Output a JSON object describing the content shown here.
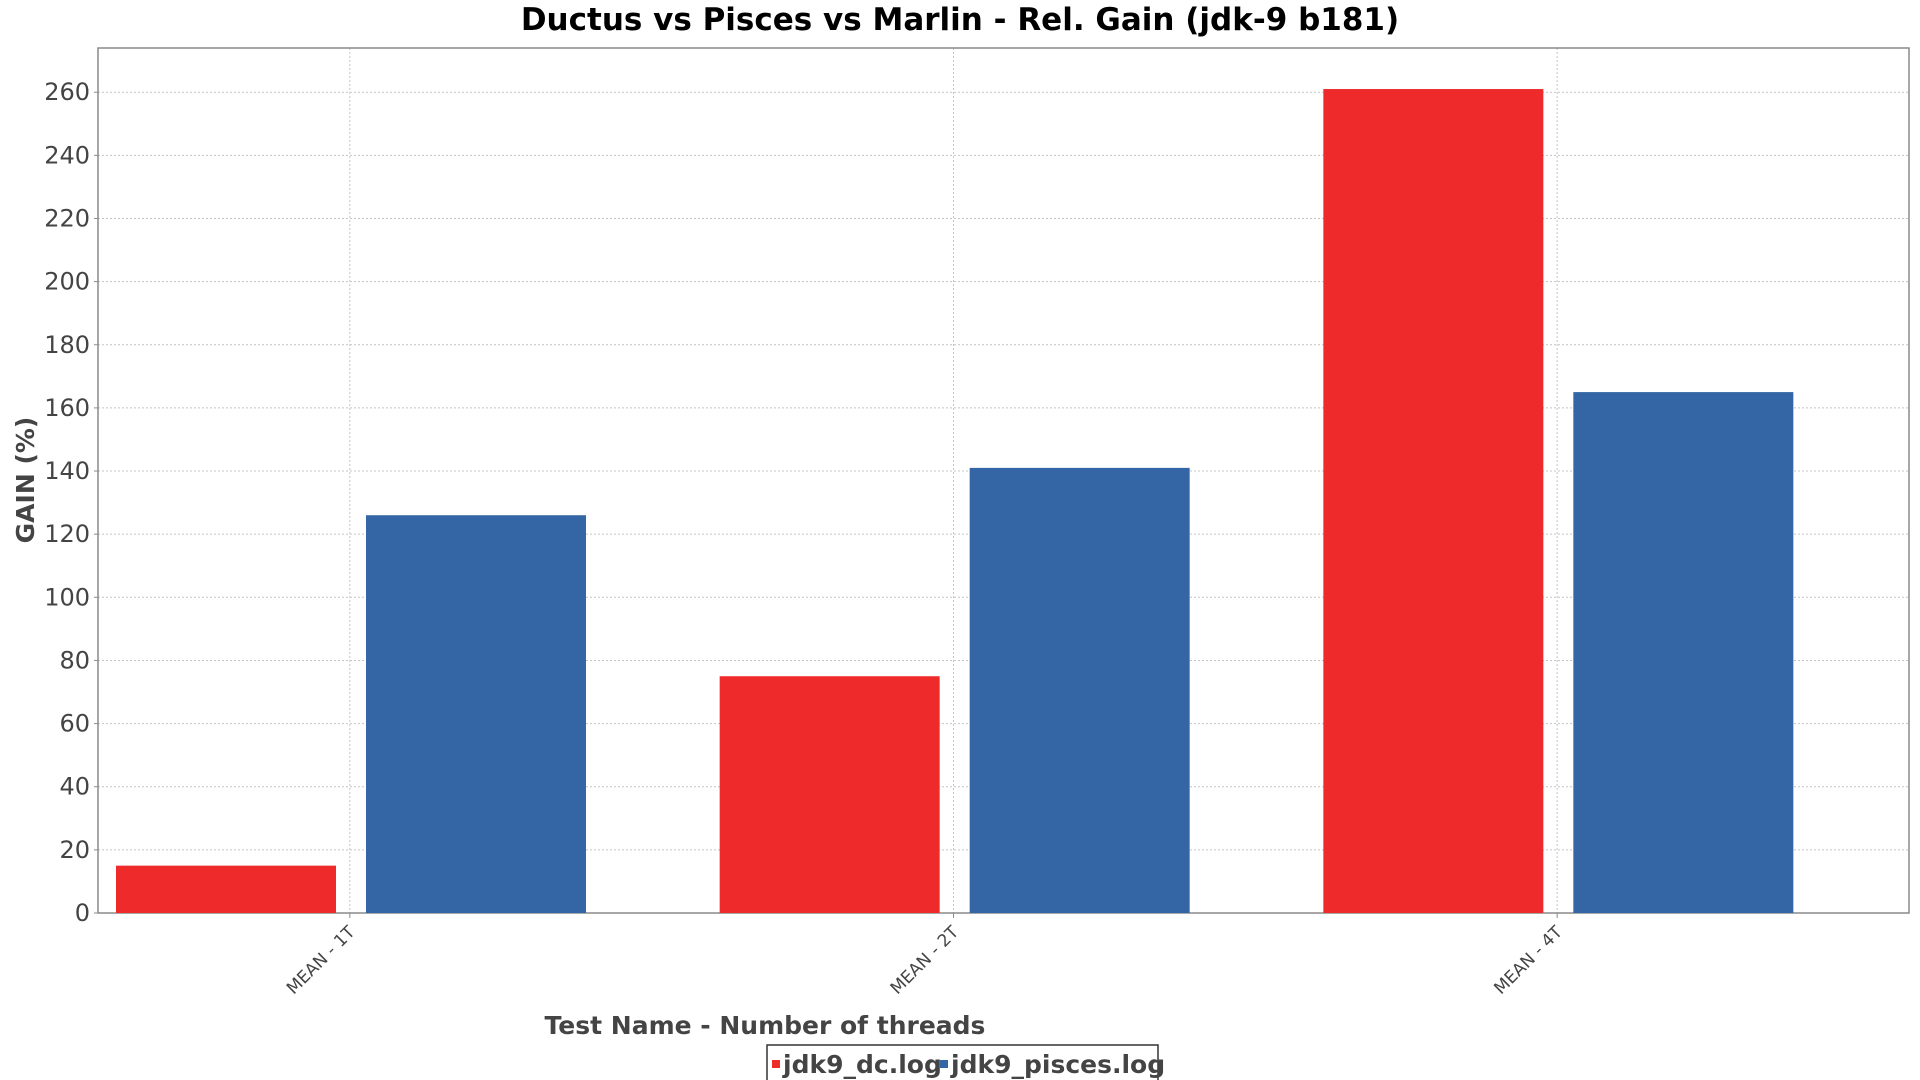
{
  "chart_data": {
    "type": "bar",
    "title": "Ductus vs Pisces vs Marlin - Rel. Gain (jdk-9 b181)",
    "xlabel": "Test Name - Number of threads",
    "ylabel": "GAIN (%)",
    "categories": [
      "MEAN - 1T",
      "MEAN - 2T",
      "MEAN - 4T"
    ],
    "series": [
      {
        "name": "jdk9_dc.log",
        "color": "#ee2a2b",
        "values": [
          15,
          75,
          261
        ]
      },
      {
        "name": "jdk9_pisces.log",
        "color": "#3465a4",
        "values": [
          126,
          141,
          165
        ]
      }
    ],
    "ylim": [
      0,
      274
    ],
    "yticks": [
      0,
      20,
      40,
      60,
      80,
      100,
      120,
      140,
      160,
      180,
      200,
      220,
      240,
      260
    ],
    "grid": true,
    "legend_position": "bottom-center"
  }
}
